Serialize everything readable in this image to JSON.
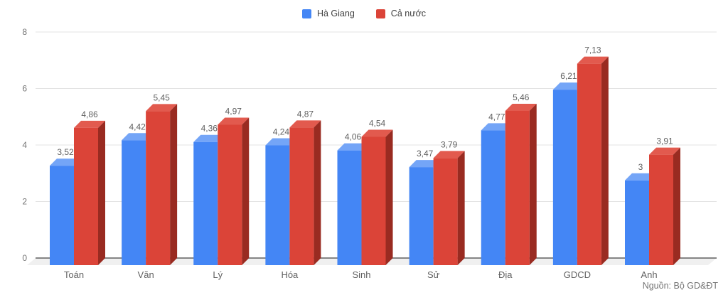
{
  "legend": {
    "items": [
      {
        "label": "Hà Giang"
      },
      {
        "label": "Cả nước"
      }
    ]
  },
  "source": "Nguồn: Bộ GD&ĐT",
  "chart_data": {
    "type": "bar",
    "style": "3d-column",
    "title": "",
    "xlabel": "",
    "ylabel": "",
    "categories": [
      "Toán",
      "Văn",
      "Lý",
      "Hóa",
      "Sinh",
      "Sử",
      "Địa",
      "GDCD",
      "Anh"
    ],
    "series": [
      {
        "name": "Hà Giang",
        "values": [
          3.52,
          4.42,
          4.36,
          4.24,
          4.06,
          3.47,
          4.77,
          6.21,
          3
        ],
        "value_labels": [
          "3,52",
          "4,42",
          "4,36",
          "4,24",
          "4,06",
          "3,47",
          "4,77",
          "6,21",
          "3"
        ],
        "color_front": "#4486f5",
        "color_top": "#74a5f7"
      },
      {
        "name": "Cả nước",
        "values": [
          4.86,
          5.45,
          4.97,
          4.87,
          4.54,
          3.79,
          5.46,
          7.13,
          3.91
        ],
        "value_labels": [
          "4,86",
          "5,45",
          "4,97",
          "4,87",
          "4,54",
          "3,79",
          "5,46",
          "7,13",
          "3,91"
        ],
        "color_front": "#db4438",
        "color_top": "#e25a4e",
        "color_side": "#992b21"
      }
    ],
    "yticks": [
      0,
      2,
      4,
      6,
      8
    ],
    "ylim": [
      0,
      8
    ],
    "grid": true,
    "legend_position": "top-center",
    "colors": {
      "gridline": "#e3e3e3",
      "axis_line": "#5f5f5f",
      "floor": "#f0f0f0",
      "tick_label": "#757575",
      "value_label": "#616161",
      "category_label": "#616161"
    }
  }
}
